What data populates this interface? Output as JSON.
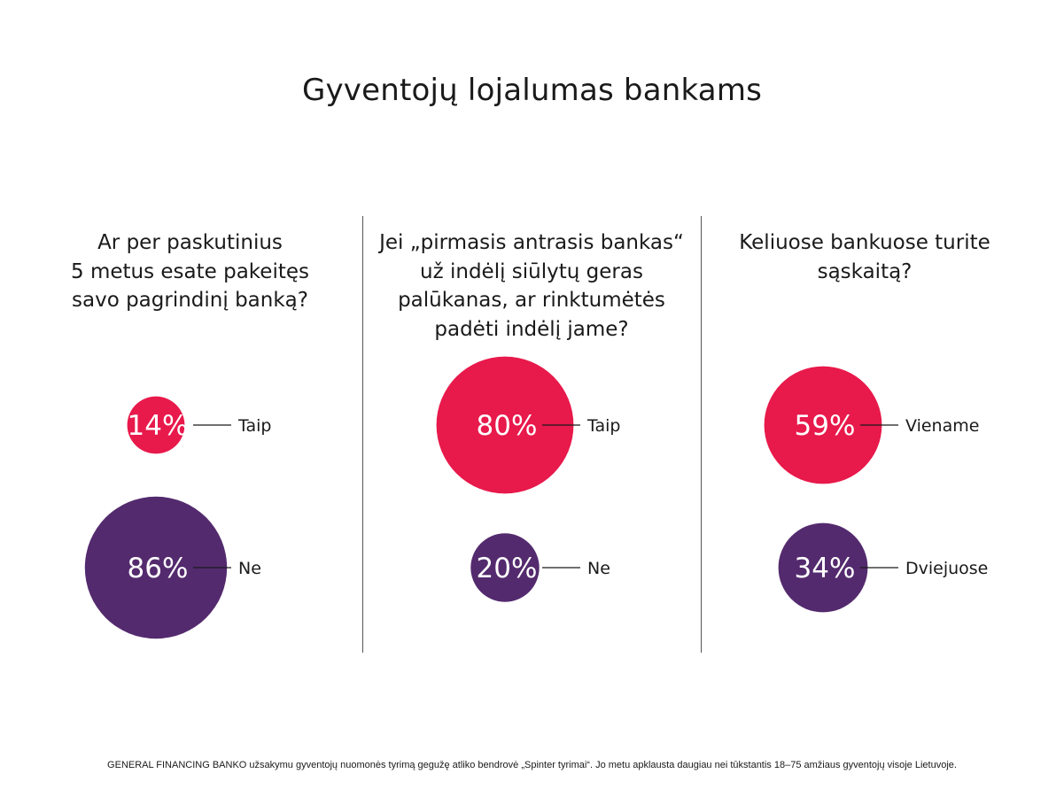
{
  "title": "Gyventojų lojalumas bankams",
  "colors": {
    "yes": "#e8194b",
    "no": "#542a6e",
    "text": "#1a1a1a",
    "value_text": "#ffffff"
  },
  "chart_data": [
    {
      "type": "bubble",
      "question_lines": [
        "Ar per paskutinius",
        "5 metus esate pakeitęs",
        "savo pagrindinį banką?"
      ],
      "categories": [
        "Taip",
        "Ne"
      ],
      "values": [
        14,
        86
      ],
      "value_labels": [
        "14%",
        "86%"
      ]
    },
    {
      "type": "bubble",
      "question_lines": [
        "Jei „pirmasis antrasis bankas“",
        "už indėlį siūlytų geras",
        "palūkanas, ar rinktumėtės",
        "padėti indėlį jame?"
      ],
      "categories": [
        "Taip",
        "Ne"
      ],
      "values": [
        80,
        20
      ],
      "value_labels": [
        "80%",
        "20%"
      ]
    },
    {
      "type": "bubble",
      "question_lines": [
        "Keliuose bankuose turite",
        "sąskaitą?"
      ],
      "categories": [
        "Viename",
        "Dviejuose"
      ],
      "values": [
        59,
        34
      ],
      "value_labels": [
        "59%",
        "34%"
      ]
    }
  ],
  "footnote": "GENERAL FINANCING BANKO užsakymu gyventojų nuomonės tyrimą gegužę atliko bendrovė „Spinter tyrimai“. Jo metu apklausta daugiau nei tūkstantis 18–75 amžiaus gyventojų visoje Lietuvoje."
}
